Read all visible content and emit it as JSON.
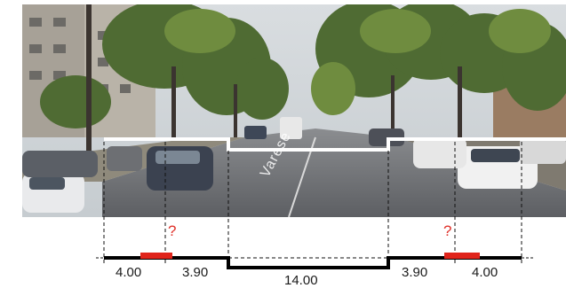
{
  "photo": {
    "street_name": "Varese"
  },
  "section": {
    "segments": [
      {
        "id": "left-sidewalk",
        "width_label": "4.00"
      },
      {
        "id": "left-parking",
        "width_label": "3.90"
      },
      {
        "id": "carriageway",
        "width_label": "14.00"
      },
      {
        "id": "right-parking",
        "width_label": "3.90"
      },
      {
        "id": "right-sidewalk",
        "width_label": "4.00"
      }
    ],
    "unknown_marker": "?",
    "colors": {
      "profile_line": "#000000",
      "photo_profile": "#ffffff",
      "highlight": "#e0241b",
      "question": "#e0312a"
    }
  }
}
